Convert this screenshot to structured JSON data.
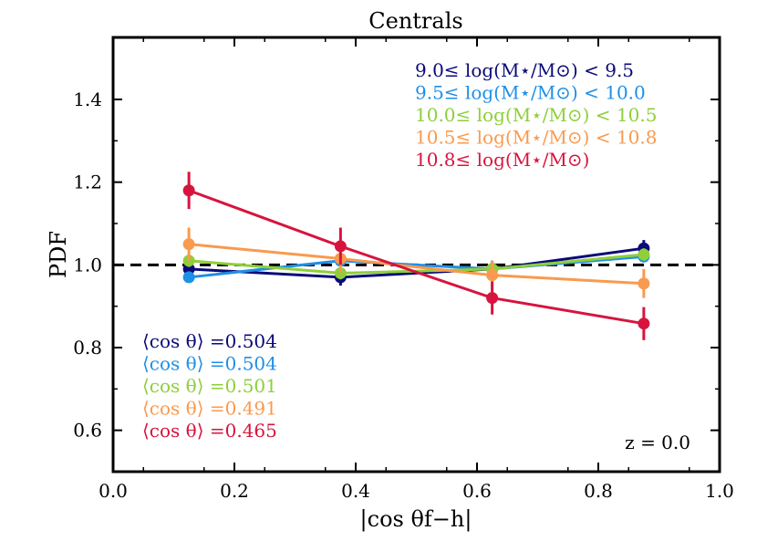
{
  "chart_data": {
    "type": "line",
    "title": "Centrals",
    "xlabel": "|cos θf−h|",
    "ylabel": "PDF",
    "xlim": [
      0.0,
      1.0
    ],
    "ylim": [
      0.5,
      1.55
    ],
    "xticks": [
      0.0,
      0.2,
      0.4,
      0.6,
      0.8,
      1.0
    ],
    "xtick_labels": [
      "0.0",
      "0.2",
      "0.4",
      "0.6",
      "0.8",
      "1.0"
    ],
    "yticks": [
      0.6,
      0.8,
      1.0,
      1.2,
      1.4
    ],
    "ytick_labels": [
      "0.6",
      "0.8",
      "1.0",
      "1.2",
      "1.4"
    ],
    "reference_line": {
      "y": 1.0,
      "style": "dashed",
      "color": "#000000"
    },
    "x": [
      0.125,
      0.375,
      0.625,
      0.875
    ],
    "series": [
      {
        "name": "9.0≤ log(M⋆/M⊙) < 9.5",
        "color": "#0a0a78",
        "values": [
          0.99,
          0.97,
          0.99,
          1.04
        ],
        "errors": [
          0.02,
          0.02,
          0.02,
          0.02
        ],
        "mean_label": "⟨cos θ⟩ =0.504"
      },
      {
        "name": "9.5≤ log(M⋆/M⊙) < 10.0",
        "color": "#1e8fe6",
        "values": [
          0.97,
          1.01,
          0.99,
          1.02
        ],
        "errors": [
          0.01,
          0.01,
          0.01,
          0.01
        ],
        "mean_label": "⟨cos θ⟩ =0.504"
      },
      {
        "name": "10.0≤ log(M⋆/M⊙) < 10.5",
        "color": "#8ecf3a",
        "values": [
          1.01,
          0.98,
          0.99,
          1.025
        ],
        "errors": [
          0.015,
          0.015,
          0.015,
          0.015
        ],
        "mean_label": "⟨cos θ⟩ =0.501"
      },
      {
        "name": "10.5≤ log(M⋆/M⊙) < 10.8",
        "color": "#f99a4e",
        "values": [
          1.05,
          1.015,
          0.975,
          0.955
        ],
        "errors": [
          0.04,
          0.035,
          0.035,
          0.035
        ],
        "mean_label": "⟨cos θ⟩ =0.491"
      },
      {
        "name": "10.8≤ log(M⋆/M⊙)",
        "color": "#d7143e",
        "values": [
          1.18,
          1.045,
          0.92,
          0.858
        ],
        "errors": [
          0.045,
          0.045,
          0.04,
          0.04
        ],
        "mean_label": "⟨cos θ⟩ =0.465"
      }
    ],
    "legend_position": "top-right",
    "annotation": "z = 0.0"
  }
}
